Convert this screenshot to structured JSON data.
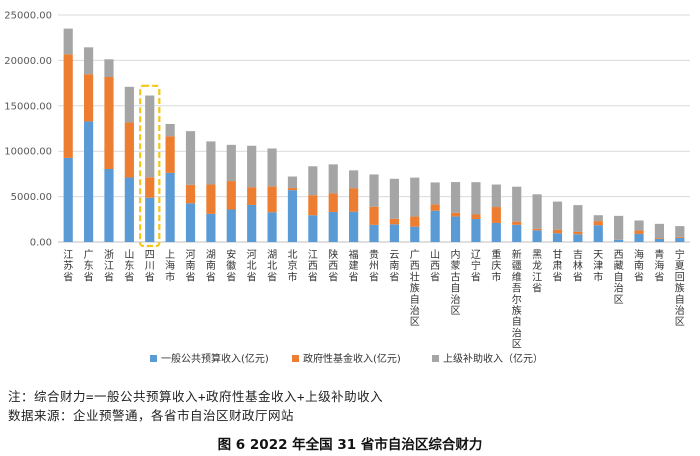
{
  "colors": {
    "general": "#5b9bd5",
    "fund": "#ed7d31",
    "transfer": "#a5a5a5",
    "highlight": "#f5c518",
    "grid": "#d9d9d9"
  },
  "chart_data": {
    "type": "bar",
    "stacked": true,
    "unit": "亿元",
    "ylim": [
      0,
      25000
    ],
    "yticks": [
      "0.00",
      "5000.00",
      "10000.00",
      "15000.00",
      "20000.00",
      "25000.00"
    ],
    "ytick_values": [
      0,
      5000,
      10000,
      15000,
      20000,
      25000
    ],
    "grid": true,
    "legend_position": "bottom",
    "highlighted_category": "四川省",
    "categories": [
      "江苏省",
      "广东省",
      "浙江省",
      "山东省",
      "四川省",
      "上海市",
      "河南省",
      "湖南省",
      "安徽省",
      "河北省",
      "湖北省",
      "北京市",
      "江西省",
      "陕西省",
      "福建省",
      "贵州省",
      "云南省",
      "广西壮族自治区",
      "山西省",
      "内蒙古自治区",
      "辽宁省",
      "重庆市",
      "新疆维吾尔族自治区",
      "黑龙江省",
      "甘肃省",
      "吉林省",
      "天津市",
      "西藏自治区",
      "海南省",
      "青海省",
      "宁夏回族自治区"
    ],
    "series": [
      {
        "name": "一般公共预算收入(亿元)",
        "values": [
          9260,
          13280,
          8040,
          7100,
          4880,
          7610,
          4260,
          3100,
          3580,
          4080,
          3280,
          5710,
          2950,
          3310,
          3340,
          1890,
          1950,
          1690,
          3450,
          2820,
          2530,
          2100,
          1890,
          1290,
          960,
          850,
          1850,
          230,
          890,
          330,
          460
        ]
      },
      {
        "name": "政府性基金收入(亿元)",
        "values": [
          11410,
          5200,
          10130,
          6070,
          2250,
          4040,
          2030,
          3240,
          3130,
          1960,
          2850,
          230,
          2210,
          2040,
          2590,
          2000,
          600,
          1110,
          670,
          400,
          500,
          1750,
          350,
          160,
          400,
          260,
          450,
          20,
          370,
          90,
          100
        ]
      },
      {
        "name": "上级补助收入（亿元）",
        "values": [
          2830,
          2960,
          1950,
          3920,
          9000,
          1350,
          5920,
          4740,
          3990,
          4560,
          4170,
          1270,
          3180,
          3200,
          1960,
          3550,
          4410,
          4290,
          2440,
          3380,
          3560,
          2480,
          3850,
          3800,
          3090,
          2950,
          650,
          2630,
          1110,
          1580,
          1190
        ]
      }
    ]
  },
  "notes": {
    "line1": "注：综合财力=一般公共预算收入+政府性基金收入+上级补助收入",
    "line2": "数据来源：企业预警通，各省市自治区财政厅网站"
  },
  "caption": "图 6   2022 年全国 31 省市自治区综合财力"
}
